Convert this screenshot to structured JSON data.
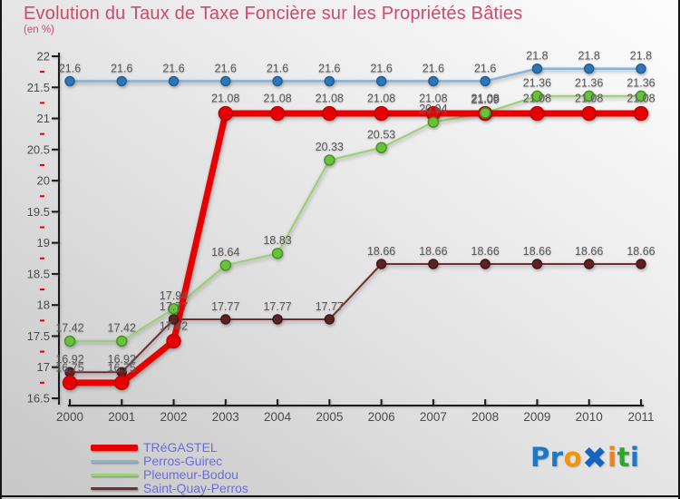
{
  "header": {
    "title": "Evolution du Taux de Taxe Foncière sur les Propriétés Bâties",
    "subtitle": "(en %)"
  },
  "chart_data": {
    "type": "line",
    "title": "Evolution du Taux de Taxe Foncière sur les Propriétés Bâties",
    "ylabel": "(en %)",
    "x": [
      2000,
      2001,
      2002,
      2003,
      2004,
      2005,
      2006,
      2007,
      2008,
      2009,
      2010,
      2011
    ],
    "ylim": [
      16.5,
      22
    ],
    "ytick_step": 0.5,
    "grid": "off",
    "legend_position": "bottom-left",
    "data_label_color": "#595959",
    "axis": {
      "line_color": "#1a1a1a",
      "tick_label_color": "#4a4a4a",
      "minor_tick_color": "#e00000"
    },
    "series": [
      {
        "name": "TRéGASTEL",
        "slug": "tregastel",
        "line_color": "#e80000",
        "marker_fill": "#e80000",
        "marker_edge": "#bb0000",
        "line_width": 7,
        "marker_r": 7.5,
        "values": [
          16.75,
          16.75,
          17.42,
          21.08,
          21.08,
          21.08,
          21.08,
          21.08,
          21.08,
          21.08,
          21.08,
          21.08
        ]
      },
      {
        "name": "Perros-Guirec",
        "slug": "perros-guirec",
        "line_color": "#85b3da",
        "marker_fill": "#2e76b5",
        "marker_edge": "#1f5c94",
        "line_width": 2.5,
        "marker_r": 5,
        "values": [
          21.6,
          21.6,
          21.6,
          21.6,
          21.6,
          21.6,
          21.6,
          21.6,
          21.6,
          21.8,
          21.8,
          21.8
        ]
      },
      {
        "name": "Pleumeur-Bodou",
        "slug": "pleumeur-bodou",
        "line_color": "#97d171",
        "marker_fill": "#68c23e",
        "marker_edge": "#44931f",
        "line_width": 2,
        "marker_r": 5.5,
        "values": [
          17.42,
          17.42,
          17.94,
          18.64,
          18.83,
          20.33,
          20.53,
          20.94,
          21.09,
          21.36,
          21.36,
          21.36
        ]
      },
      {
        "name": "Saint-Quay-Perros",
        "slug": "saint-quay-perros",
        "line_color": "#6e3030",
        "marker_fill": "#5e2222",
        "marker_edge": "#3f1515",
        "line_width": 2,
        "marker_r": 5,
        "values": [
          16.92,
          16.92,
          17.77,
          17.77,
          17.77,
          17.77,
          18.66,
          18.66,
          18.66,
          18.66,
          18.66,
          18.66
        ]
      }
    ]
  },
  "logo": {
    "name": "Proxiti",
    "letters": [
      {
        "ch": "P",
        "color": "#1e78c8"
      },
      {
        "ch": "r",
        "color": "#1e78c8"
      },
      {
        "ch": "o",
        "color": "#f59300"
      },
      {
        "ch": "✖",
        "color": "#1565c0",
        "big": true
      },
      {
        "ch": "i",
        "color": "#f08018"
      },
      {
        "ch": "t",
        "color": "#2ea52e"
      },
      {
        "ch": "i",
        "color": "#1e78c8"
      }
    ]
  }
}
